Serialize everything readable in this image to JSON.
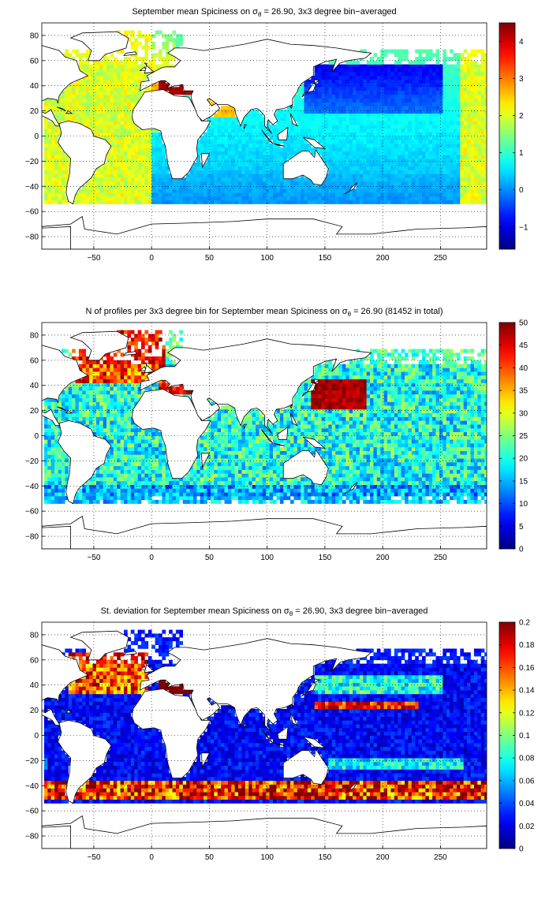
{
  "panels": [
    {
      "title_before": "September mean Spiciness on σ",
      "title_sub": "θ",
      "title_after": " = 26.90, 3x3 degree bin−averaged",
      "colorbar_ticks": [
        "−1",
        "0",
        "1",
        "2",
        "3",
        "4"
      ],
      "colorbar_range": [
        -1.6,
        4.5
      ],
      "colormap": "jet"
    },
    {
      "title_before": "N of profiles per 3x3 degree bin for September mean Spiciness on σ",
      "title_sub": "θ",
      "title_after": " = 26.90 (81452 in total)",
      "colorbar_ticks": [
        "0",
        "5",
        "10",
        "15",
        "20",
        "25",
        "30",
        "35",
        "40",
        "45",
        "50"
      ],
      "colorbar_range": [
        0,
        50
      ],
      "colormap": "jet"
    },
    {
      "title_before": "St. deviation for September mean Spiciness on σ",
      "title_sub": "θ",
      "title_after": " = 26.90, 3x3 degree bin−averaged",
      "colorbar_ticks": [
        "0",
        "0.02",
        "0.04",
        "0.06",
        "0.08",
        "0.1",
        "0.12",
        "0.14",
        "0.16",
        "0.18",
        "0.2"
      ],
      "colorbar_range": [
        0,
        0.2
      ],
      "colormap": "jet"
    }
  ],
  "axes": {
    "x_ticks": [
      "−50",
      "0",
      "50",
      "100",
      "150",
      "200",
      "250"
    ],
    "x_range": [
      -95,
      290
    ],
    "y_ticks": [
      "−80",
      "−60",
      "−40",
      "−20",
      "0",
      "20",
      "40",
      "60",
      "80"
    ],
    "y_range": [
      -90,
      90
    ],
    "grid": "dotted"
  }
}
